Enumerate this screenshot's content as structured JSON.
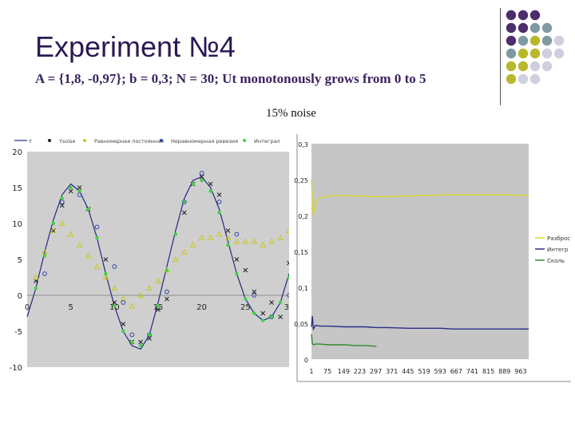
{
  "slide": {
    "title": "Experiment №4",
    "subtitle": "A = {1,8, -0,97}; b = 0,3; N = 30; Ut monotonously grows from 0 to 5",
    "noise_label": "15% noise"
  },
  "decor": {
    "dot_colors": [
      "#4b2e6a",
      "#7f9aa3",
      "#b8b82c",
      "#cfcfdf"
    ]
  },
  "chart_data": [
    {
      "type": "scatter",
      "title": "",
      "xlabel": "",
      "ylabel": "",
      "xlim": [
        0,
        30
      ],
      "ylim": [
        -10,
        20
      ],
      "x_ticks": [
        "0",
        "5",
        "10",
        "15",
        "20",
        "25",
        "30"
      ],
      "y_ticks": [
        "20",
        "15",
        "10",
        "5",
        "0",
        "-5",
        "-10"
      ],
      "grid": false,
      "legend_position": "top",
      "legend_labels": [
        "Y",
        "Ysoise",
        "Равномерная постоянная",
        "Неравномерная ревизия",
        "Интеграл"
      ],
      "series": [
        {
          "name": "Y",
          "style": "line",
          "x": [
            0,
            1,
            2,
            3,
            4,
            5,
            6,
            7,
            8,
            9,
            10,
            11,
            12,
            13,
            14,
            15,
            16,
            17,
            18,
            19,
            20,
            21,
            22,
            23,
            24,
            25,
            26,
            27,
            28,
            29,
            30
          ],
          "y": [
            -3,
            1,
            6,
            10.5,
            14,
            15.5,
            14.5,
            12,
            8,
            3,
            -1.5,
            -5,
            -7,
            -7.5,
            -5.5,
            -1,
            4,
            9,
            13.5,
            16,
            16.5,
            15,
            12,
            7.5,
            3,
            -0.5,
            -2.5,
            -3.5,
            -3,
            -1,
            3
          ]
        },
        {
          "name": "Ysoise",
          "style": "x",
          "x": [
            1,
            3,
            4,
            5,
            6,
            7,
            9,
            10,
            11,
            12,
            13,
            14,
            15,
            16,
            18,
            19,
            20,
            21,
            22,
            23,
            24,
            25,
            26,
            27,
            28,
            29,
            30
          ],
          "y": [
            2,
            9,
            12.5,
            14.5,
            15,
            12,
            5,
            -1,
            -4,
            -6.5,
            -6.5,
            -6,
            -2,
            -0.5,
            11.5,
            15.5,
            16.5,
            15.5,
            14,
            9,
            5,
            3.5,
            0.5,
            -2.5,
            -1,
            -3,
            4.5
          ]
        },
        {
          "name": "Равномерная постоянная",
          "style": "triangle",
          "x": [
            1,
            2,
            3,
            4,
            5,
            6,
            7,
            8,
            9,
            10,
            11,
            12,
            13,
            14,
            15,
            16,
            17,
            18,
            19,
            20,
            21,
            22,
            23,
            24,
            25,
            26,
            27,
            28,
            29,
            30
          ],
          "y": [
            2.5,
            6,
            9,
            10,
            8.5,
            7,
            5.5,
            4,
            2.5,
            1,
            -0.5,
            -1.5,
            0,
            1,
            2,
            3.5,
            5,
            6,
            7,
            8,
            8,
            8.5,
            8,
            7.5,
            7.5,
            7.5,
            7,
            7.5,
            8,
            9
          ]
        },
        {
          "name": "Неравномерная ревизия",
          "style": "circle",
          "x": [
            2,
            4,
            6,
            8,
            10,
            11,
            12,
            14,
            16,
            18,
            20,
            22,
            24,
            26,
            28,
            30
          ],
          "y": [
            3,
            13,
            14,
            9.5,
            4,
            -1,
            -5.5,
            -5.5,
            0.5,
            13,
            17,
            13,
            8.5,
            0,
            -3,
            0
          ]
        },
        {
          "name": "Интеграл",
          "style": "dot",
          "x": [
            1,
            2,
            3,
            4,
            5,
            6,
            7,
            8,
            9,
            10,
            11,
            12,
            13,
            14,
            15,
            16,
            17,
            18,
            19,
            20,
            21,
            22,
            23,
            24,
            25,
            26,
            27,
            28,
            29,
            30
          ],
          "y": [
            1,
            5.5,
            10,
            13.5,
            15,
            14.5,
            12,
            8,
            3,
            -1.5,
            -5,
            -6.5,
            -7,
            -5.5,
            -1.5,
            3.5,
            8.5,
            13,
            15.5,
            16,
            14.5,
            11.5,
            7,
            3,
            -0.5,
            -2.5,
            -3.5,
            -3,
            -1,
            2.5
          ]
        }
      ]
    },
    {
      "type": "line",
      "title": "",
      "xlabel": "",
      "ylabel": "",
      "xlim": [
        1,
        1000
      ],
      "ylim": [
        0,
        0.3
      ],
      "x_ticks": [
        "1",
        "75",
        "149",
        "223",
        "297",
        "371",
        "445",
        "519",
        "593",
        "667",
        "741",
        "815",
        "889",
        "963"
      ],
      "y_ticks": [
        "0,3",
        "0,25",
        "0,2",
        "0,15",
        "0,1",
        "0,05",
        "0"
      ],
      "grid": false,
      "legend_position": "right",
      "series": [
        {
          "name": "Разброс",
          "color": "#d8d82a",
          "x": [
            1,
            5,
            10,
            20,
            30,
            40,
            60,
            80,
            100,
            150,
            200,
            250,
            300,
            350,
            400,
            450,
            500,
            550,
            600,
            650,
            700,
            750,
            800,
            850,
            900,
            963,
            1000
          ],
          "y": [
            0.25,
            0.22,
            0.2,
            0.215,
            0.222,
            0.224,
            0.226,
            0.227,
            0.228,
            0.228,
            0.227,
            0.227,
            0.226,
            0.226,
            0.227,
            0.227,
            0.228,
            0.228,
            0.229,
            0.229,
            0.229,
            0.229,
            0.229,
            0.229,
            0.229,
            0.228,
            0.228
          ]
        },
        {
          "name": "Интегр",
          "color": "#2b2b8c",
          "x": [
            1,
            5,
            10,
            20,
            40,
            80,
            150,
            250,
            300,
            350,
            450,
            500,
            550,
            600,
            650,
            700,
            800,
            900,
            963,
            1000
          ],
          "y": [
            0.045,
            0.06,
            0.042,
            0.047,
            0.046,
            0.046,
            0.045,
            0.045,
            0.044,
            0.044,
            0.043,
            0.043,
            0.043,
            0.043,
            0.042,
            0.042,
            0.042,
            0.042,
            0.042,
            0.042
          ]
        },
        {
          "name": "Сколь",
          "color": "#2e8a2e",
          "x": [
            1,
            5,
            10,
            20,
            40,
            80,
            120,
            160,
            200,
            250,
            300
          ],
          "y": [
            0.035,
            0.022,
            0.02,
            0.021,
            0.021,
            0.02,
            0.02,
            0.02,
            0.019,
            0.019,
            0.018
          ]
        }
      ]
    }
  ]
}
